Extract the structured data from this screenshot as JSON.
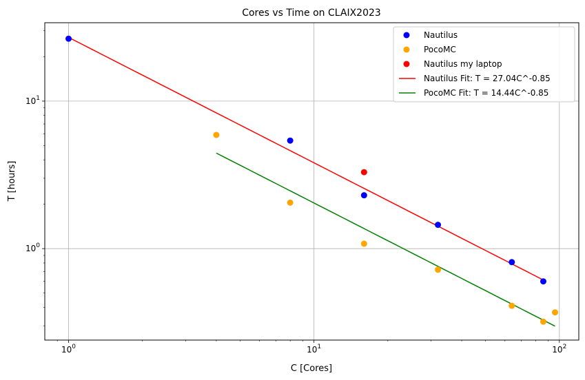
{
  "chart_data": {
    "type": "scatter",
    "title": "Cores vs Time on CLAIX2023",
    "xlabel": "C [Cores]",
    "ylabel": "T [hours]",
    "xscale": "log",
    "yscale": "log",
    "xlim": [
      0.8,
      120
    ],
    "ylim": [
      0.24,
      34
    ],
    "grid": true,
    "legend_position": "top-right",
    "x_major_ticks": [
      1,
      10,
      100
    ],
    "x_major_tick_labels": [
      "10^0",
      "10^1",
      "10^2"
    ],
    "y_major_ticks": [
      1,
      10
    ],
    "y_major_tick_labels": [
      "10^0",
      "10^1"
    ],
    "series": [
      {
        "name": "Nautilus",
        "kind": "scatter",
        "color": "#0000ff",
        "points": [
          [
            1,
            26.5
          ],
          [
            8,
            5.4
          ],
          [
            16,
            2.3
          ],
          [
            32,
            1.45
          ],
          [
            64,
            0.81
          ],
          [
            86,
            0.6
          ]
        ]
      },
      {
        "name": "PocoMC",
        "kind": "scatter",
        "color": "#ffa500",
        "points": [
          [
            4,
            5.9
          ],
          [
            8,
            2.05
          ],
          [
            16,
            1.08
          ],
          [
            32,
            0.72
          ],
          [
            64,
            0.41
          ],
          [
            86,
            0.32
          ],
          [
            96,
            0.37
          ]
        ]
      },
      {
        "name": "Nautilus my laptop",
        "kind": "scatter",
        "color": "#ff0000",
        "points": [
          [
            16,
            3.3
          ]
        ]
      },
      {
        "name": "Nautilus Fit: T = 27.04C^-0.85",
        "kind": "line",
        "color": "#ff0000",
        "coef": 27.04,
        "exp": -0.85,
        "x": [
          1,
          86
        ]
      },
      {
        "name": "PocoMC Fit: T = 14.44C^-0.85",
        "kind": "line",
        "color": "#008000",
        "coef": 14.44,
        "exp": -0.85,
        "x": [
          4,
          96
        ]
      }
    ]
  }
}
